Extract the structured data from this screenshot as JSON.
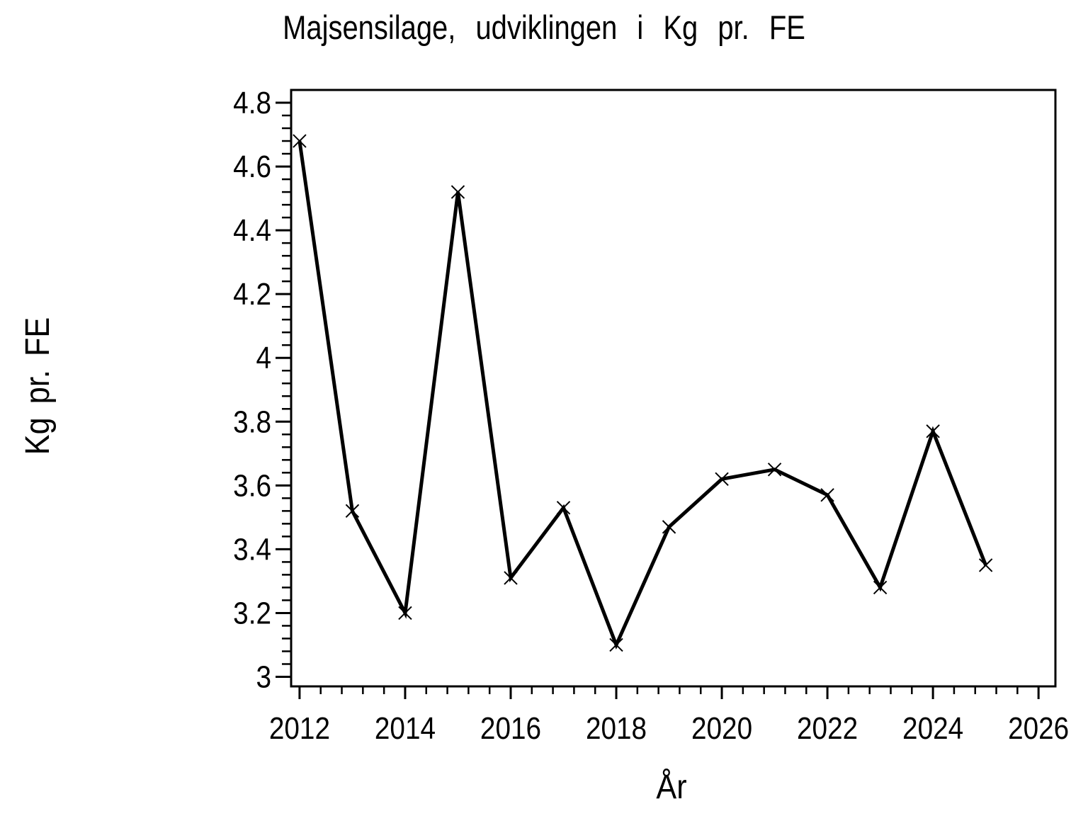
{
  "figure": {
    "background": "#FFFFFF",
    "foreground": "#000000"
  },
  "chart_data": {
    "type": "line",
    "title": "Majsensilage, udviklingen i Kg pr. FE",
    "xlabel": "År",
    "ylabel": "Kg pr. FE",
    "x": [
      2012,
      2013,
      2014,
      2015,
      2016,
      2017,
      2018,
      2019,
      2020,
      2021,
      2022,
      2023,
      2024,
      2025
    ],
    "values": [
      4.68,
      3.52,
      3.2,
      4.52,
      3.31,
      3.53,
      3.1,
      3.47,
      3.62,
      3.65,
      3.57,
      3.28,
      3.77,
      3.35
    ],
    "series_name": "Kg pr. FE",
    "marker": "x-cross",
    "line_color": "#000000",
    "marker_color": "#000000",
    "xlim": [
      2011.84,
      2026.32
    ],
    "ylim": [
      2.97,
      4.84
    ],
    "x_major_ticks": [
      2012,
      2014,
      2016,
      2018,
      2020,
      2022,
      2024,
      2026
    ],
    "x_tick_labels": [
      "2012",
      "2014",
      "2016",
      "2018",
      "2020",
      "2022",
      "2024",
      "2026"
    ],
    "x_minor_step": 0.4,
    "y_major_ticks": [
      3,
      3.2,
      3.4,
      3.6,
      3.8,
      4,
      4.2,
      4.4,
      4.6,
      4.8
    ],
    "y_tick_labels": [
      "3",
      "3.2",
      "3.4",
      "3.6",
      "3.8",
      "4",
      "4.2",
      "4.4",
      "4.6",
      "4.8"
    ],
    "y_minor_step": 0.04,
    "grid": false,
    "legend": false,
    "frame": "box"
  }
}
